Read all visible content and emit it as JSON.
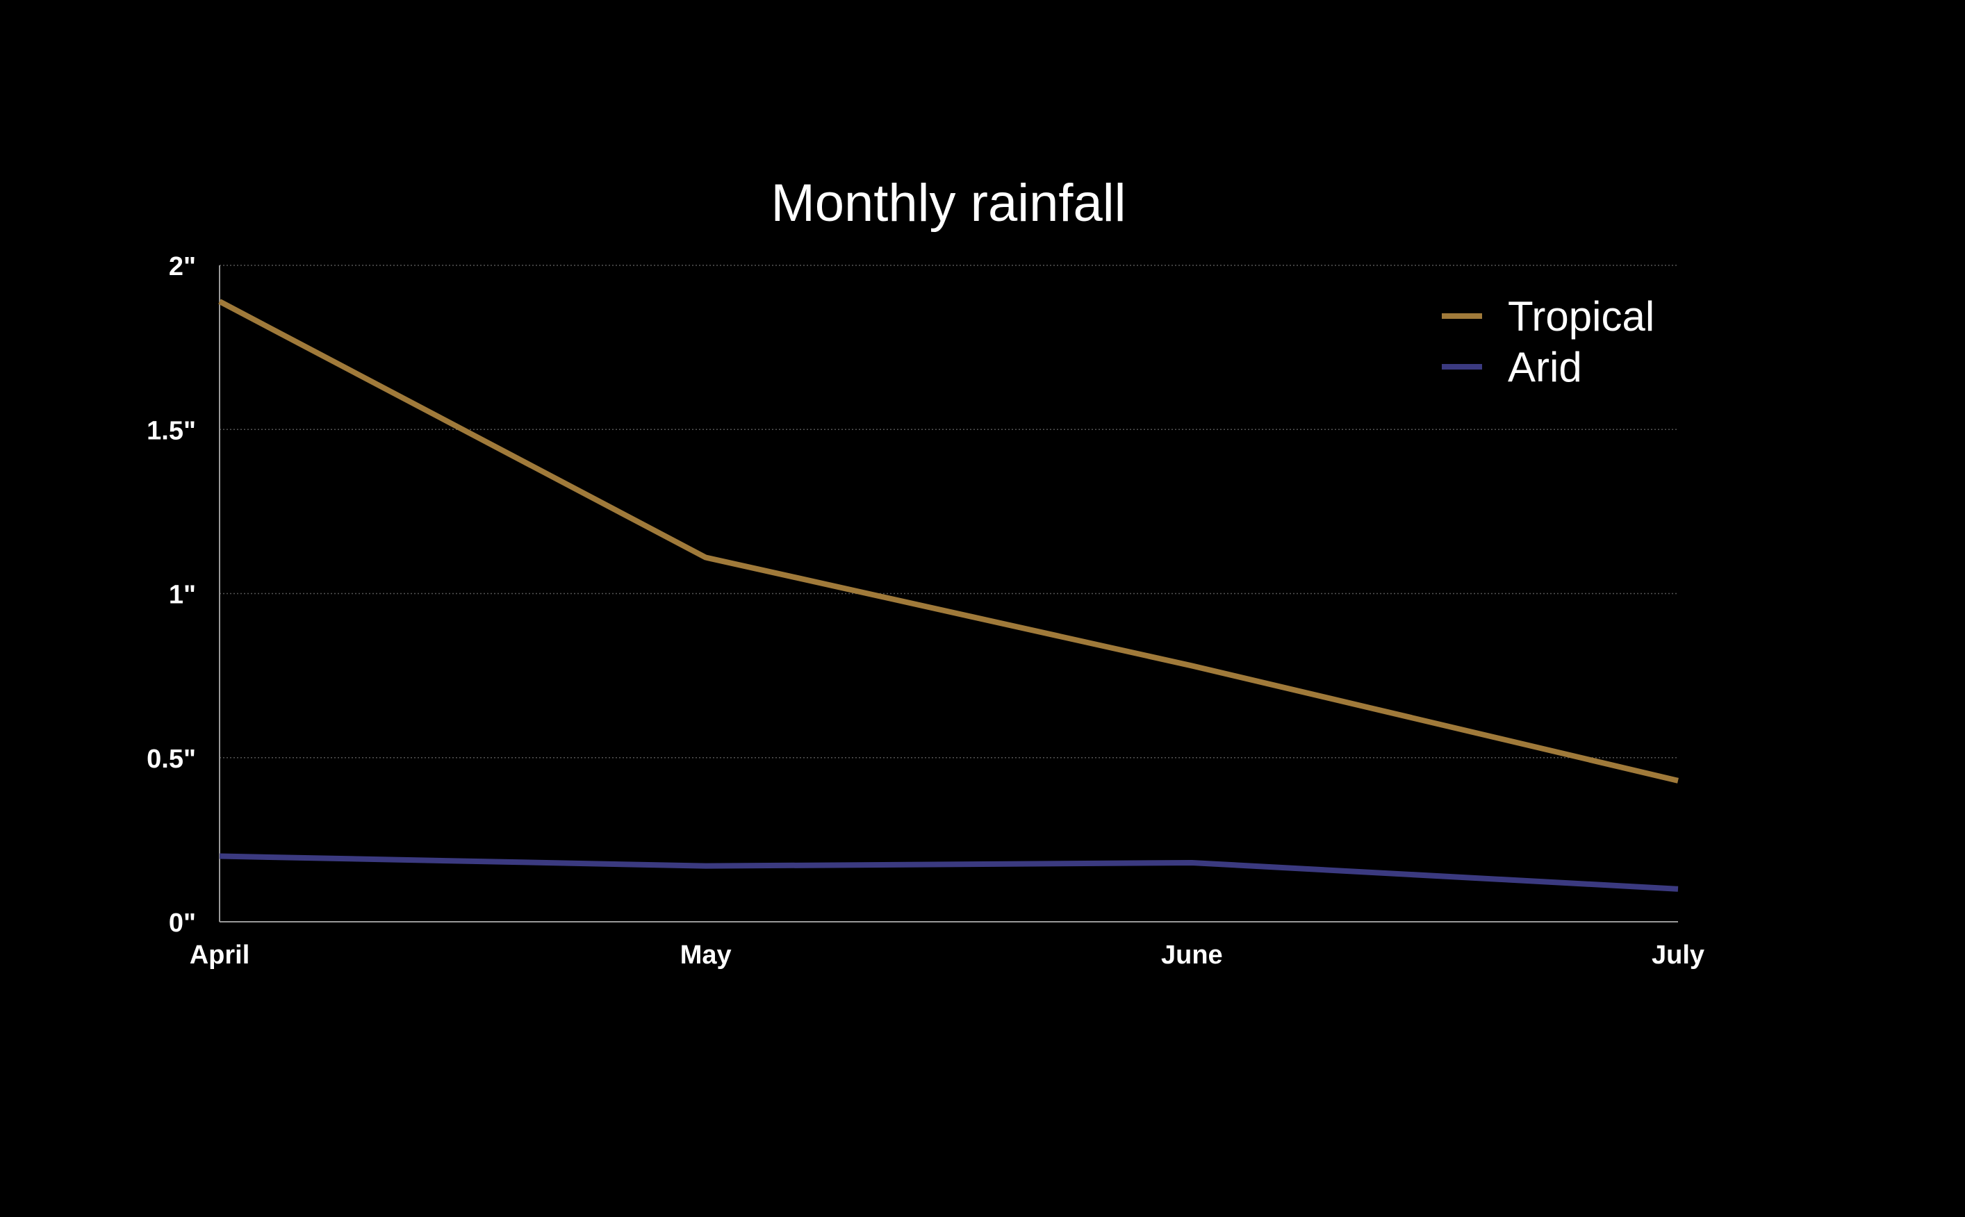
{
  "chart_data": {
    "type": "line",
    "title": "Monthly rainfall",
    "categories": [
      "April",
      "May",
      "June",
      "July"
    ],
    "ylim": [
      0,
      2
    ],
    "yticks": [
      0,
      0.5,
      1,
      1.5,
      2
    ],
    "ytick_labels": [
      "0\"",
      "0.5\"",
      "1\"",
      "1.5\"",
      "2\""
    ],
    "grid": true,
    "legend_position": "top-right",
    "series": [
      {
        "name": "Tropical",
        "color": "#a07a3a",
        "values": [
          1.89,
          1.11,
          0.78,
          0.43
        ]
      },
      {
        "name": "Arid",
        "color": "#3b3a80",
        "values": [
          0.2,
          0.17,
          0.18,
          0.1
        ]
      }
    ]
  }
}
